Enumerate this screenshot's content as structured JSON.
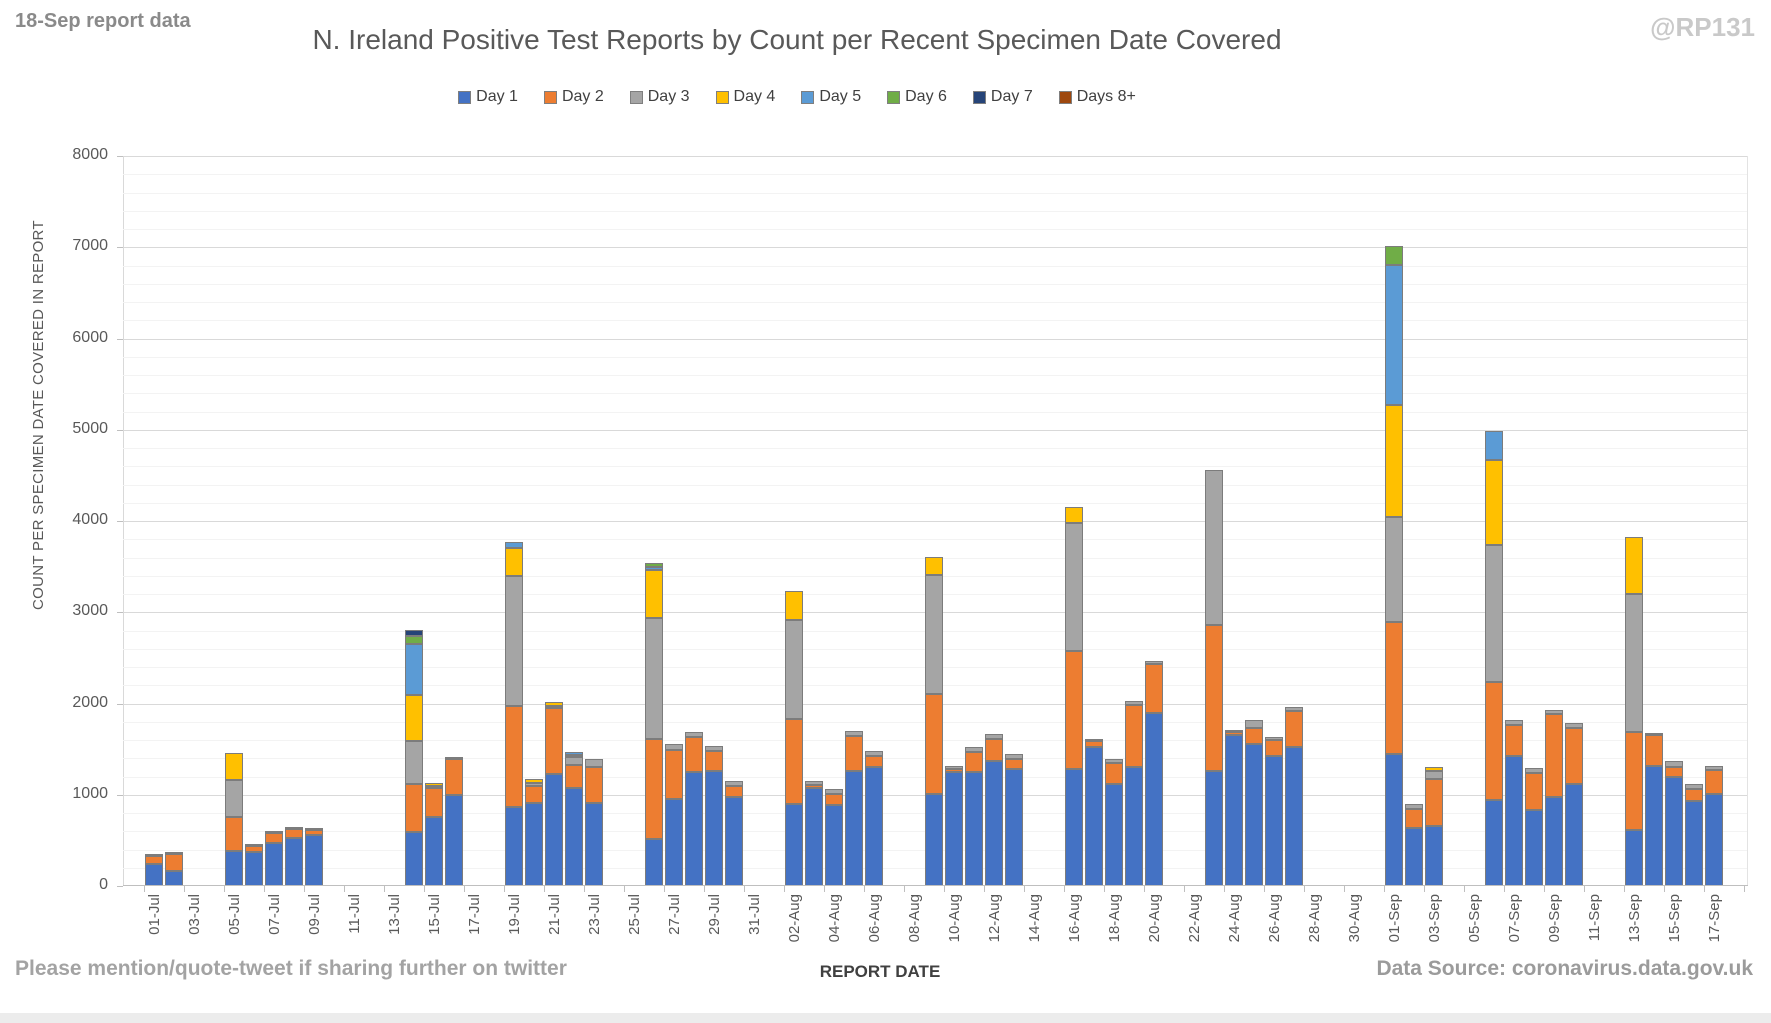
{
  "page": {
    "note_top_left": "18-Sep report data",
    "watermark": "@RP131",
    "footer_left": "Please mention/quote-tweet if sharing further on twitter",
    "footer_right": "Data Source: coronavirus.data.gov.uk"
  },
  "chart_data": {
    "type": "bar",
    "stacked": true,
    "title": "N. Ireland Positive Test Reports by Count per Recent Specimen Date Covered",
    "xlabel": "REPORT DATE",
    "ylabel": "COUNT PER SPECIMEN DATE COVERED IN REPORT",
    "ylim": [
      0,
      8000
    ],
    "ytick_interval": 1000,
    "yminor_interval": 200,
    "grid": "horizontal major and minor gridlines",
    "legend_position": "top-center",
    "x_axis_range": "01-Jul to 17-Sep, one slot per day, labels every 2 days",
    "xtick_labels": [
      "01-Jul",
      "03-Jul",
      "05-Jul",
      "07-Jul",
      "09-Jul",
      "11-Jul",
      "13-Jul",
      "15-Jul",
      "17-Jul",
      "19-Jul",
      "21-Jul",
      "23-Jul",
      "25-Jul",
      "27-Jul",
      "29-Jul",
      "31-Jul",
      "02-Aug",
      "04-Aug",
      "06-Aug",
      "08-Aug",
      "10-Aug",
      "12-Aug",
      "14-Aug",
      "16-Aug",
      "18-Aug",
      "20-Aug",
      "22-Aug",
      "24-Aug",
      "26-Aug",
      "28-Aug",
      "30-Aug",
      "01-Sep",
      "03-Sep",
      "05-Sep",
      "07-Sep",
      "09-Sep",
      "11-Sep",
      "13-Sep",
      "15-Sep",
      "17-Sep"
    ],
    "series_names": [
      "Day 1",
      "Day 2",
      "Day 3",
      "Day 4",
      "Day 5",
      "Day 6",
      "Day 7",
      "Days 8+"
    ],
    "series_colors": [
      "#4472C4",
      "#ED7D31",
      "#A5A5A5",
      "#FFC000",
      "#5B9BD5",
      "#70AD47",
      "#264478",
      "#9E480E"
    ],
    "bars": [
      {
        "date": "01-Jul",
        "day_index": 0,
        "values": [
          245,
          80,
          25,
          0,
          0,
          0,
          0,
          0
        ]
      },
      {
        "date": "02-Jul",
        "day_index": 1,
        "values": [
          160,
          190,
          15,
          0,
          0,
          0,
          0,
          0
        ]
      },
      {
        "date": "05-Jul",
        "day_index": 4,
        "values": [
          380,
          380,
          405,
          295,
          0,
          0,
          0,
          0
        ]
      },
      {
        "date": "06-Jul",
        "day_index": 5,
        "values": [
          375,
          60,
          15,
          0,
          0,
          0,
          0,
          0
        ]
      },
      {
        "date": "07-Jul",
        "day_index": 6,
        "values": [
          470,
          110,
          20,
          0,
          0,
          0,
          0,
          0
        ]
      },
      {
        "date": "08-Jul",
        "day_index": 7,
        "values": [
          530,
          100,
          15,
          0,
          0,
          0,
          0,
          0
        ]
      },
      {
        "date": "09-Jul",
        "day_index": 8,
        "values": [
          560,
          50,
          15,
          0,
          0,
          0,
          0,
          0
        ]
      },
      {
        "date": "14-Jul",
        "day_index": 13,
        "values": [
          595,
          520,
          475,
          500,
          565,
          90,
          60,
          0
        ]
      },
      {
        "date": "15-Jul",
        "day_index": 14,
        "values": [
          760,
          320,
          20,
          30,
          0,
          0,
          0,
          0
        ]
      },
      {
        "date": "16-Jul",
        "day_index": 15,
        "values": [
          995,
          400,
          20,
          0,
          0,
          0,
          0,
          0
        ]
      },
      {
        "date": "19-Jul",
        "day_index": 18,
        "values": [
          865,
          1110,
          1420,
          310,
          60,
          0,
          0,
          0
        ]
      },
      {
        "date": "20-Jul",
        "day_index": 19,
        "values": [
          905,
          195,
          25,
          45,
          0,
          0,
          0,
          0
        ]
      },
      {
        "date": "21-Jul",
        "day_index": 20,
        "values": [
          1225,
          730,
          20,
          35,
          0,
          0,
          0,
          0
        ]
      },
      {
        "date": "22-Jul",
        "day_index": 21,
        "values": [
          1080,
          250,
          80,
          10,
          40,
          0,
          0,
          0
        ]
      },
      {
        "date": "23-Jul",
        "day_index": 22,
        "values": [
          905,
          395,
          90,
          0,
          0,
          0,
          0,
          0
        ]
      },
      {
        "date": "26-Jul",
        "day_index": 25,
        "values": [
          520,
          1090,
          1330,
          520,
          40,
          40,
          0,
          0
        ]
      },
      {
        "date": "27-Jul",
        "day_index": 26,
        "values": [
          950,
          545,
          65,
          0,
          0,
          0,
          0,
          0
        ]
      },
      {
        "date": "28-Jul",
        "day_index": 27,
        "values": [
          1245,
          385,
          55,
          0,
          0,
          0,
          0,
          0
        ]
      },
      {
        "date": "29-Jul",
        "day_index": 28,
        "values": [
          1265,
          220,
          55,
          0,
          0,
          0,
          0,
          0
        ]
      },
      {
        "date": "30-Jul",
        "day_index": 29,
        "values": [
          975,
          125,
          55,
          0,
          0,
          0,
          0,
          0
        ]
      },
      {
        "date": "02-Aug",
        "day_index": 32,
        "values": [
          900,
          930,
          1090,
          310,
          0,
          0,
          0,
          0
        ]
      },
      {
        "date": "03-Aug",
        "day_index": 33,
        "values": [
          1080,
          25,
          50,
          0,
          0,
          0,
          0,
          0
        ]
      },
      {
        "date": "04-Aug",
        "day_index": 34,
        "values": [
          890,
          120,
          55,
          0,
          0,
          0,
          0,
          0
        ]
      },
      {
        "date": "05-Aug",
        "day_index": 35,
        "values": [
          1265,
          385,
          50,
          0,
          0,
          0,
          0,
          0
        ]
      },
      {
        "date": "06-Aug",
        "day_index": 36,
        "values": [
          1300,
          130,
          55,
          0,
          0,
          0,
          0,
          0
        ]
      },
      {
        "date": "09-Aug",
        "day_index": 39,
        "values": [
          1010,
          1090,
          1310,
          200,
          0,
          0,
          0,
          0
        ]
      },
      {
        "date": "10-Aug",
        "day_index": 40,
        "values": [
          1245,
          35,
          40,
          0,
          0,
          0,
          0,
          0
        ]
      },
      {
        "date": "11-Aug",
        "day_index": 41,
        "values": [
          1245,
          220,
          55,
          0,
          0,
          0,
          0,
          0
        ]
      },
      {
        "date": "12-Aug",
        "day_index": 42,
        "values": [
          1375,
          235,
          55,
          0,
          0,
          0,
          0,
          0
        ]
      },
      {
        "date": "13-Aug",
        "day_index": 43,
        "values": [
          1280,
          110,
          55,
          0,
          0,
          0,
          0,
          0
        ]
      },
      {
        "date": "16-Aug",
        "day_index": 46,
        "values": [
          1285,
          1290,
          1400,
          175,
          0,
          0,
          0,
          0
        ]
      },
      {
        "date": "17-Aug",
        "day_index": 47,
        "values": [
          1525,
          60,
          25,
          0,
          0,
          0,
          0,
          0
        ]
      },
      {
        "date": "18-Aug",
        "day_index": 48,
        "values": [
          1120,
          225,
          45,
          0,
          0,
          0,
          0,
          0
        ]
      },
      {
        "date": "19-Aug",
        "day_index": 49,
        "values": [
          1300,
          685,
          45,
          0,
          0,
          0,
          0,
          0
        ]
      },
      {
        "date": "20-Aug",
        "day_index": 50,
        "values": [
          1900,
          530,
          35,
          0,
          0,
          0,
          0,
          0
        ]
      },
      {
        "date": "23-Aug",
        "day_index": 53,
        "values": [
          1265,
          1600,
          1690,
          0,
          0,
          0,
          0,
          0
        ]
      },
      {
        "date": "24-Aug",
        "day_index": 54,
        "values": [
          1650,
          35,
          15,
          0,
          0,
          0,
          0,
          0
        ]
      },
      {
        "date": "25-Aug",
        "day_index": 55,
        "values": [
          1555,
          180,
          90,
          0,
          0,
          0,
          0,
          0
        ]
      },
      {
        "date": "26-Aug",
        "day_index": 56,
        "values": [
          1430,
          170,
          30,
          0,
          0,
          0,
          0,
          0
        ]
      },
      {
        "date": "27-Aug",
        "day_index": 57,
        "values": [
          1525,
          395,
          40,
          0,
          0,
          0,
          0,
          0
        ]
      },
      {
        "date": "01-Sep",
        "day_index": 62,
        "values": [
          1450,
          1445,
          1150,
          1225,
          1535,
          210,
          0,
          0
        ]
      },
      {
        "date": "02-Sep",
        "day_index": 63,
        "values": [
          635,
          215,
          50,
          0,
          0,
          0,
          0,
          0
        ]
      },
      {
        "date": "03-Sep",
        "day_index": 64,
        "values": [
          660,
          510,
          90,
          50,
          0,
          0,
          0,
          0
        ]
      },
      {
        "date": "06-Sep",
        "day_index": 67,
        "values": [
          945,
          1290,
          1505,
          930,
          315,
          0,
          0,
          0
        ]
      },
      {
        "date": "07-Sep",
        "day_index": 68,
        "values": [
          1430,
          340,
          45,
          0,
          0,
          0,
          0,
          0
        ]
      },
      {
        "date": "08-Sep",
        "day_index": 69,
        "values": [
          830,
          405,
          60,
          0,
          0,
          0,
          0,
          0
        ]
      },
      {
        "date": "09-Sep",
        "day_index": 70,
        "values": [
          975,
          915,
          40,
          0,
          0,
          0,
          0,
          0
        ]
      },
      {
        "date": "10-Sep",
        "day_index": 71,
        "values": [
          1120,
          615,
          50,
          0,
          0,
          0,
          0,
          0
        ]
      },
      {
        "date": "13-Sep",
        "day_index": 74,
        "values": [
          610,
          1080,
          1510,
          630,
          0,
          0,
          0,
          0
        ]
      },
      {
        "date": "14-Sep",
        "day_index": 75,
        "values": [
          1320,
          330,
          20,
          0,
          0,
          0,
          0,
          0
        ]
      },
      {
        "date": "15-Sep",
        "day_index": 76,
        "values": [
          1195,
          115,
          65,
          0,
          0,
          0,
          0,
          0
        ]
      },
      {
        "date": "16-Sep",
        "day_index": 77,
        "values": [
          935,
          130,
          55,
          0,
          0,
          0,
          0,
          0
        ]
      },
      {
        "date": "17-Sep",
        "day_index": 78,
        "values": [
          1010,
          260,
          50,
          0,
          0,
          0,
          0,
          0
        ]
      }
    ]
  },
  "colors": {
    "bar_border": "#7C7C7C",
    "major_grid": "#D9D9D9",
    "minor_grid": "#F3F3F3",
    "axis_text": "#595959",
    "title_text": "#595959"
  }
}
